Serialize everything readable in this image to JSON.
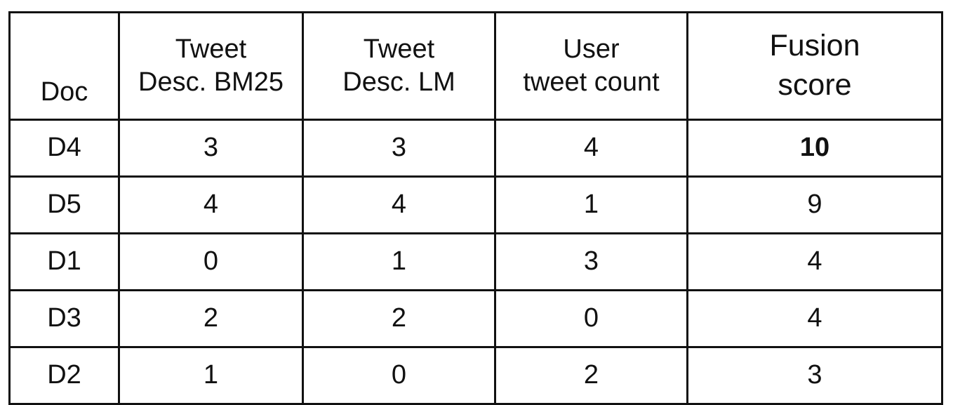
{
  "table": {
    "headers": {
      "doc": "Doc",
      "bm25": [
        "Tweet",
        "Desc. BM25"
      ],
      "lm": [
        "Tweet",
        "Desc. LM"
      ],
      "count": [
        "User",
        "tweet count"
      ],
      "fusion": [
        "Fusion",
        "score"
      ]
    },
    "rows": [
      {
        "doc": "D4",
        "bm25": "3",
        "lm": "3",
        "count": "4",
        "fusion": "10",
        "fusion_bold": true
      },
      {
        "doc": "D5",
        "bm25": "4",
        "lm": "4",
        "count": "1",
        "fusion": "9"
      },
      {
        "doc": "D1",
        "bm25": "0",
        "lm": "1",
        "count": "3",
        "fusion": "4"
      },
      {
        "doc": "D3",
        "bm25": "2",
        "lm": "2",
        "count": "0",
        "fusion": "4"
      },
      {
        "doc": "D2",
        "bm25": "1",
        "lm": "0",
        "count": "2",
        "fusion": "3"
      }
    ]
  }
}
